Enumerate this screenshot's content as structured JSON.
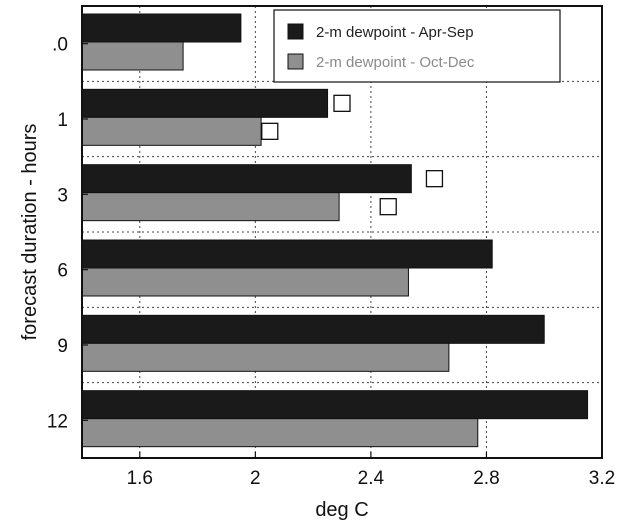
{
  "chart_data": {
    "type": "bar",
    "orientation": "horizontal",
    "xlabel": "deg C",
    "ylabel": "forecast duration - hours",
    "xlim": [
      1.4,
      3.2
    ],
    "xticks": [
      1.6,
      2,
      2.4,
      2.8,
      3.2
    ],
    "xtick_labels": [
      "1.6",
      "2",
      "2.4",
      "2.8",
      "3.2"
    ],
    "categories": [
      ".0",
      "1",
      "3",
      "6",
      "9",
      "12"
    ],
    "series": [
      {
        "name": "2-m dewpoint - Apr-Sep",
        "color": "#1a1a1a",
        "values": [
          1.95,
          2.25,
          2.54,
          2.82,
          3.0,
          3.15
        ]
      },
      {
        "name": "2-m dewpoint - Oct-Dec",
        "color": "#8f8f8f",
        "values": [
          1.75,
          2.02,
          2.29,
          2.53,
          2.67,
          2.77
        ]
      }
    ],
    "markers": {
      "shape": "open-square",
      "points": [
        {
          "category": "1",
          "series": "2-m dewpoint - Apr-Sep",
          "value": 2.3
        },
        {
          "category": "1",
          "series": "2-m dewpoint - Oct-Dec",
          "value": 2.05
        },
        {
          "category": "3",
          "series": "2-m dewpoint - Apr-Sep",
          "value": 2.62
        },
        {
          "category": "3",
          "series": "2-m dewpoint - Oct-Dec",
          "value": 2.46
        }
      ]
    },
    "grid": true,
    "legend_position": "top"
  }
}
